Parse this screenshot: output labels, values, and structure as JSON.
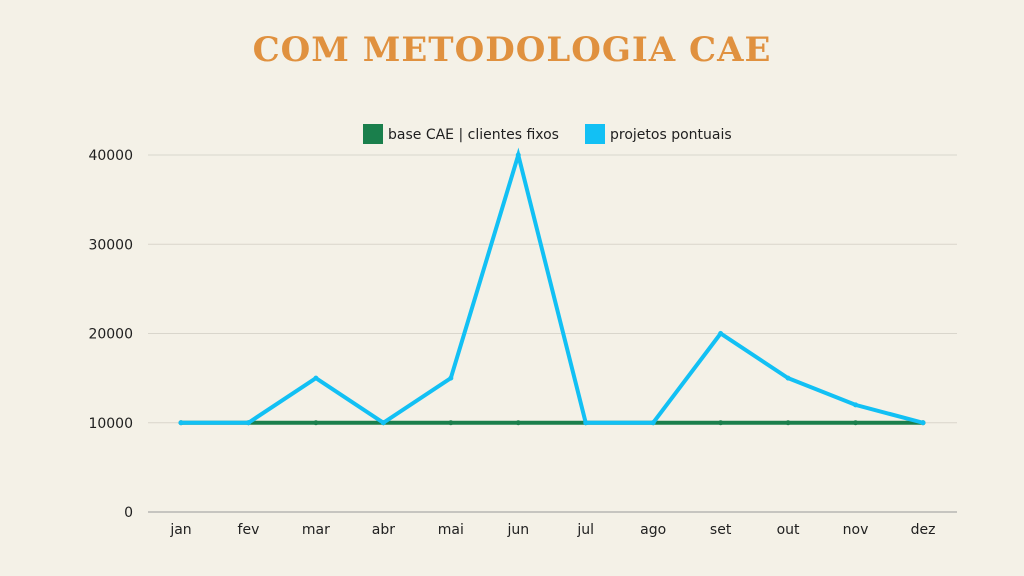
{
  "chart_data": {
    "type": "line",
    "title": "COM METODOLOGIA CAE",
    "categories": [
      "jan",
      "fev",
      "mar",
      "abr",
      "mai",
      "jun",
      "jul",
      "ago",
      "set",
      "out",
      "nov",
      "dez"
    ],
    "series": [
      {
        "name": "base CAE | clientes fixos",
        "color": "#1a7f4c",
        "values": [
          10000,
          10000,
          10000,
          10000,
          10000,
          10000,
          10000,
          10000,
          10000,
          10000,
          10000,
          10000
        ]
      },
      {
        "name": "projetos pontuais",
        "color": "#12c0f4",
        "values": [
          10000,
          10000,
          15000,
          10000,
          15000,
          40000,
          10000,
          10000,
          20000,
          15000,
          12000,
          10000
        ]
      }
    ],
    "ylim": [
      0,
      40000
    ],
    "yticks": [
      0,
      10000,
      20000,
      30000,
      40000
    ],
    "xlabel": "",
    "ylabel": "",
    "grid": true,
    "legend_position": "top-center"
  },
  "colors": {
    "background": "#f4f1e7",
    "title": "#e0913f",
    "grid": "#d9d6cc",
    "axis": "#999999",
    "text": "#1f1f1f"
  }
}
